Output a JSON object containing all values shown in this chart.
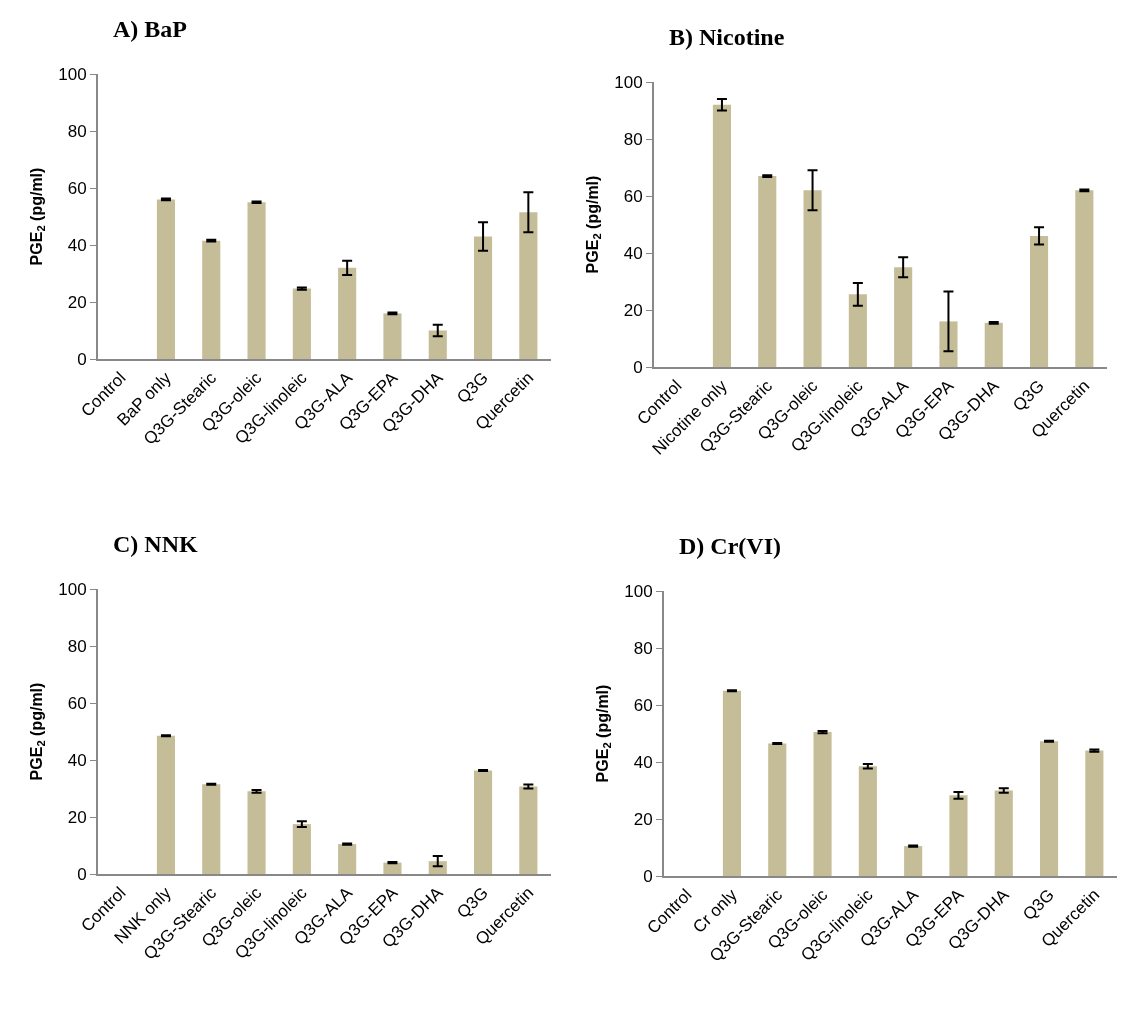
{
  "chart_data": [
    {
      "type": "bar",
      "title": "A) BaP",
      "ylabel": "PGE$_{2}$ (pg/ml)",
      "categories": [
        "Control",
        "BaP only",
        "Q3G-Stearic",
        "Q3G-oleic",
        "Q3G-linoleic",
        "Q3G-ALA",
        "Q3G-EPA",
        "Q3G-DHA",
        "Q3G",
        "Quercetin"
      ],
      "values": [
        0,
        56,
        41.5,
        55,
        24.7,
        32,
        16,
        10,
        43,
        51.5
      ],
      "errors": [
        null,
        0.3,
        0.3,
        0.3,
        0.4,
        2.5,
        0.3,
        2,
        5,
        7
      ],
      "color": "#c4bd97",
      "ylim": [
        0,
        100
      ],
      "yticks": [
        0,
        20,
        40,
        60,
        80,
        100
      ],
      "grid": false,
      "legend": false
    },
    {
      "type": "bar",
      "title": "B) Nicotine",
      "ylabel": "PGE$_{2}$ (pg/ml)",
      "categories": [
        "Control",
        "Nicotine only",
        "Q3G-Stearic",
        "Q3G-oleic",
        "Q3G-linoleic",
        "Q3G-ALA",
        "Q3G-EPA",
        "Q3G-DHA",
        "Q3G",
        "Quercetin"
      ],
      "values": [
        0,
        92,
        67,
        62,
        25.5,
        35,
        16,
        15.5,
        46,
        62
      ],
      "errors": [
        null,
        2,
        0.3,
        7,
        4,
        3.5,
        10.5,
        0.3,
        3,
        0.3
      ],
      "color": "#c4bd97",
      "ylim": [
        0,
        100
      ],
      "yticks": [
        0,
        20,
        40,
        60,
        80,
        100
      ],
      "grid": false,
      "legend": false
    },
    {
      "type": "bar",
      "title": "C) NNK",
      "ylabel": "PGE$_{2}$ (pg/ml)",
      "categories": [
        "Control",
        "NNK only",
        "Q3G-Stearic",
        "Q3G-oleic",
        "Q3G-linoleic",
        "Q3G-ALA",
        "Q3G-EPA",
        "Q3G-DHA",
        "Q3G",
        "Quercetin"
      ],
      "values": [
        0,
        48.5,
        31.5,
        29,
        17.5,
        10.5,
        4,
        4.5,
        36.3,
        30.7
      ],
      "errors": [
        null,
        0.2,
        0.2,
        0.5,
        1,
        0.2,
        0.2,
        1.8,
        0.2,
        0.7
      ],
      "color": "#c4bd97",
      "ylim": [
        0,
        100
      ],
      "yticks": [
        0,
        20,
        40,
        60,
        80,
        100
      ],
      "grid": false,
      "legend": false
    },
    {
      "type": "bar",
      "title": "D) Cr(VI)",
      "ylabel": "PGE$_{2}$ (pg/ml)",
      "categories": [
        "Control",
        "Cr only",
        "Q3G-Stearic",
        "Q3G-oleic",
        "Q3G-linoleic",
        "Q3G-ALA",
        "Q3G-EPA",
        "Q3G-DHA",
        "Q3G",
        "Quercetin"
      ],
      "values": [
        0,
        65,
        46.5,
        50.5,
        38.5,
        10.5,
        28.3,
        30,
        47.3,
        44
      ],
      "errors": [
        null,
        0.2,
        0.2,
        0.4,
        0.8,
        0.2,
        1.2,
        0.8,
        0.2,
        0.4
      ],
      "color": "#c4bd97",
      "ylim": [
        0,
        100
      ],
      "yticks": [
        0,
        20,
        40,
        60,
        80,
        100
      ],
      "grid": false,
      "legend": false
    }
  ]
}
